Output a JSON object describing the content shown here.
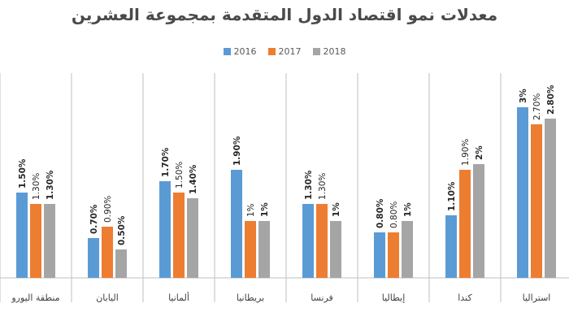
{
  "title": "معدلات نمو اقتصاد الدول المتقدمة بمجموعة العشرين",
  "colors": {
    "s2016": "#5b9bd5",
    "s2017": "#ed7d31",
    "s2018": "#a5a5a5",
    "grid": "#bfbfbf"
  },
  "legend": [
    "2016",
    "2017",
    "2018"
  ],
  "chart_data": {
    "type": "bar",
    "title": "معدلات نمو اقتصاد الدول المتقدمة بمجموعة العشرين",
    "xlabel": "",
    "ylabel": "",
    "grid": false,
    "legend_position": "top",
    "ylim": [
      0,
      3.5
    ],
    "categories": [
      "منطقة اليورو",
      "اليابان",
      "ألمانيا",
      "بريطانيا",
      "فرنسا",
      "إيطاليا",
      "كندا",
      "استراليا"
    ],
    "series": [
      {
        "name": "2016",
        "values": [
          1.5,
          0.7,
          1.7,
          1.9,
          1.3,
          0.8,
          1.1,
          3.0
        ],
        "labels": [
          "1.50%",
          "0.70%",
          "1.70%",
          "1.90%",
          "1.30%",
          "0.80%",
          "1.10%",
          "3%"
        ]
      },
      {
        "name": "2017",
        "values": [
          1.3,
          0.9,
          1.5,
          1.0,
          1.3,
          0.8,
          1.9,
          2.7
        ],
        "labels": [
          "1.30%",
          "0.90%",
          "1.50%",
          "1%",
          "1.30%",
          "0.80%",
          "1.90%",
          "2.70%"
        ]
      },
      {
        "name": "2018",
        "values": [
          1.3,
          0.5,
          1.4,
          1.0,
          1.0,
          1.0,
          2.0,
          2.8
        ],
        "labels": [
          "1.30%",
          "0.50%",
          "1.40%",
          "1%",
          "1%",
          "1%",
          "2%",
          "2.80%"
        ]
      }
    ]
  }
}
